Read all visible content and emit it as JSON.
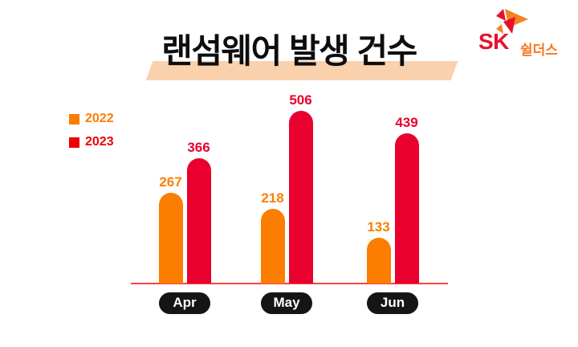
{
  "title": "랜섬웨어 발생 건수",
  "logo": {
    "sk": "SK",
    "suffix": "쉴더스"
  },
  "legend": [
    {
      "label": "2022",
      "color": "#FB7E00"
    },
    {
      "label": "2023",
      "color": "#EE0000"
    }
  ],
  "chart_data": {
    "type": "bar",
    "title": "랜섬웨어 발생 건수",
    "categories": [
      "Apr",
      "May",
      "Jun"
    ],
    "series": [
      {
        "name": "2022",
        "color": "#FB7E00",
        "values": [
          267,
          218,
          133
        ]
      },
      {
        "name": "2023",
        "color": "#E9002E",
        "values": [
          366,
          506,
          439
        ]
      }
    ],
    "xlabel": "",
    "ylabel": "",
    "ylim": [
      0,
      530
    ],
    "grid": false,
    "legend_position": "top-left",
    "value_labels": true
  },
  "colors": {
    "title_highlight": "#FAD1AD",
    "axis_line": "#FB4343",
    "category_pill_bg": "#151515",
    "category_pill_text": "#ffffff",
    "logo_red": "#E8102D",
    "logo_orange": "#F5791F"
  }
}
